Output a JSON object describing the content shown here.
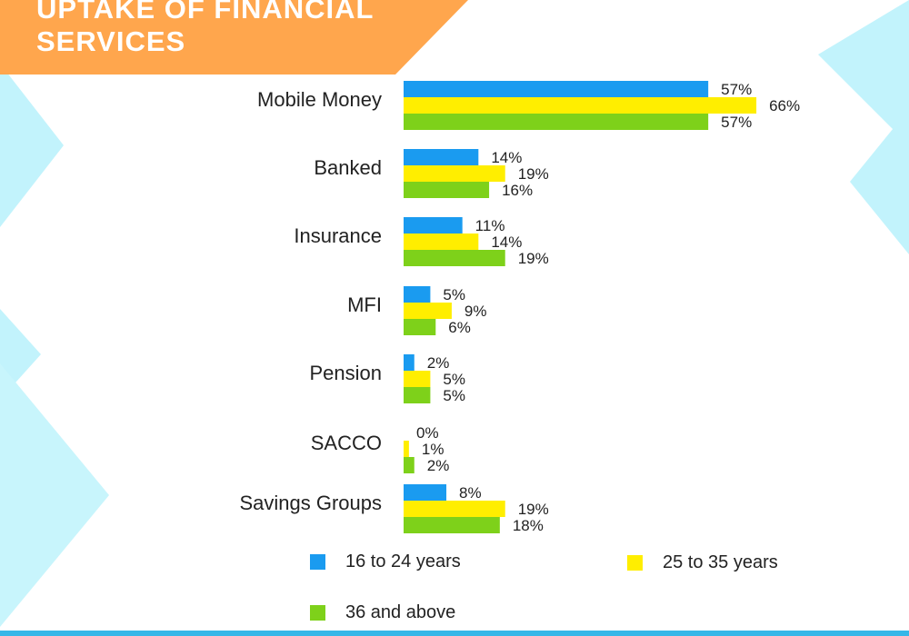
{
  "title": "UPTAKE OF FINANCIAL SERVICES",
  "colors": {
    "banner": "#ffa64d",
    "series_1": "#1a9bf0",
    "series_2": "#ffee00",
    "series_3": "#7ed11a",
    "decor": "#bdf2fb",
    "bottom_bar": "#36b7e8"
  },
  "chart_data": {
    "type": "bar",
    "orientation": "horizontal",
    "title": "UPTAKE OF FINANCIAL SERVICES",
    "categories": [
      "Mobile Money",
      "Banked",
      "Insurance",
      "MFI",
      "Pension",
      "SACCO",
      "Savings Groups"
    ],
    "series": [
      {
        "name": "16 to 24 years",
        "values": [
          57,
          14,
          11,
          5,
          2,
          0,
          8
        ]
      },
      {
        "name": "25 to 35 years",
        "values": [
          66,
          19,
          14,
          9,
          5,
          1,
          19
        ]
      },
      {
        "name": "36 and above",
        "values": [
          57,
          16,
          19,
          6,
          5,
          2,
          18
        ]
      }
    ],
    "value_suffix": "%",
    "grid": false,
    "legend_position": "bottom"
  },
  "legend": [
    {
      "label": "16 to 24 years"
    },
    {
      "label": "25 to 35 years"
    },
    {
      "label": "36 and above"
    }
  ]
}
